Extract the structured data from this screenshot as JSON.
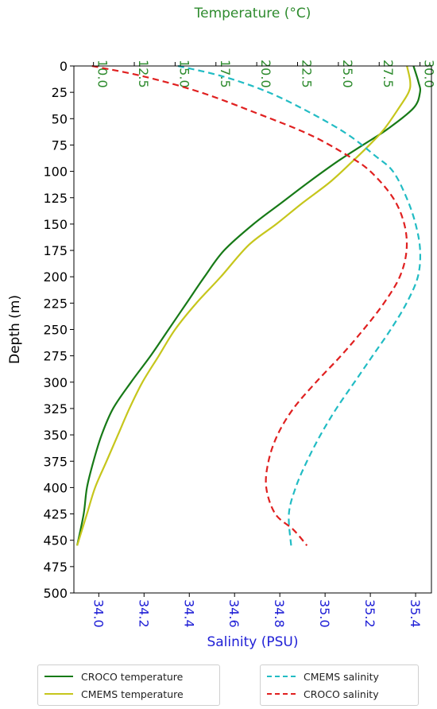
{
  "chart_data": {
    "type": "line",
    "y_axis": {
      "label": "Depth (m)",
      "range": [
        0,
        500
      ],
      "ticks": [
        0,
        25,
        50,
        75,
        100,
        125,
        150,
        175,
        200,
        225,
        250,
        275,
        300,
        325,
        350,
        375,
        400,
        425,
        450,
        475,
        500
      ],
      "inverted": true
    },
    "temp_axis": {
      "label": "Temperature (°C)",
      "position": "top",
      "color": "#2e8b2e",
      "range": [
        8.8,
        30.7
      ],
      "ticks": [
        "10.0",
        "12.5",
        "15.0",
        "17.5",
        "20.0",
        "22.5",
        "25.0",
        "27.5",
        "30.0"
      ]
    },
    "sal_axis": {
      "label": "Salinity (PSU)",
      "position": "bottom",
      "color": "#1f1fd6",
      "range": [
        33.89,
        35.47
      ],
      "ticks": [
        "34.0",
        "34.2",
        "34.4",
        "34.6",
        "34.8",
        "35.0",
        "35.2",
        "35.4"
      ]
    },
    "series": [
      {
        "name": "CROCO temperature",
        "axis": "temperature",
        "color": "#177a17",
        "dash": "solid",
        "points": [
          [
            29.6,
            0
          ],
          [
            29.9,
            15
          ],
          [
            30.0,
            25
          ],
          [
            29.6,
            40
          ],
          [
            28.0,
            60
          ],
          [
            26.5,
            75
          ],
          [
            25.0,
            90
          ],
          [
            23.2,
            110
          ],
          [
            21.5,
            130
          ],
          [
            19.8,
            150
          ],
          [
            18.0,
            175
          ],
          [
            16.8,
            200
          ],
          [
            15.7,
            225
          ],
          [
            14.6,
            250
          ],
          [
            13.5,
            275
          ],
          [
            12.3,
            300
          ],
          [
            11.2,
            325
          ],
          [
            10.5,
            350
          ],
          [
            10.0,
            375
          ],
          [
            9.6,
            400
          ],
          [
            9.4,
            425
          ],
          [
            9.0,
            455
          ]
        ]
      },
      {
        "name": "CMEMS temperature",
        "axis": "temperature",
        "color": "#c6c61c",
        "dash": "solid",
        "points": [
          [
            29.2,
            0
          ],
          [
            29.4,
            15
          ],
          [
            29.3,
            25
          ],
          [
            28.7,
            40
          ],
          [
            27.8,
            60
          ],
          [
            26.9,
            75
          ],
          [
            25.9,
            90
          ],
          [
            24.5,
            110
          ],
          [
            22.8,
            130
          ],
          [
            21.2,
            150
          ],
          [
            19.5,
            170
          ],
          [
            17.8,
            200
          ],
          [
            16.3,
            225
          ],
          [
            15.0,
            250
          ],
          [
            14.0,
            275
          ],
          [
            13.0,
            300
          ],
          [
            12.2,
            325
          ],
          [
            11.5,
            350
          ],
          [
            10.8,
            375
          ],
          [
            10.1,
            400
          ],
          [
            9.6,
            425
          ],
          [
            9.0,
            455
          ]
        ]
      },
      {
        "name": "CMEMS salinity",
        "axis": "salinity",
        "color": "#22bcc4",
        "dash": "dashed",
        "points": [
          [
            34.35,
            0
          ],
          [
            34.55,
            10
          ],
          [
            34.75,
            25
          ],
          [
            34.94,
            45
          ],
          [
            35.1,
            65
          ],
          [
            35.22,
            85
          ],
          [
            35.3,
            100
          ],
          [
            35.36,
            125
          ],
          [
            35.4,
            150
          ],
          [
            35.42,
            175
          ],
          [
            35.41,
            200
          ],
          [
            35.36,
            225
          ],
          [
            35.29,
            250
          ],
          [
            35.21,
            275
          ],
          [
            35.13,
            300
          ],
          [
            35.05,
            325
          ],
          [
            34.98,
            350
          ],
          [
            34.92,
            375
          ],
          [
            34.87,
            400
          ],
          [
            34.84,
            425
          ],
          [
            34.85,
            455
          ]
        ]
      },
      {
        "name": "CROCO salinity",
        "axis": "salinity",
        "color": "#e02020",
        "dash": "dashed",
        "points": [
          [
            33.97,
            0
          ],
          [
            34.2,
            10
          ],
          [
            34.45,
            25
          ],
          [
            34.7,
            45
          ],
          [
            34.93,
            65
          ],
          [
            35.1,
            85
          ],
          [
            35.2,
            100
          ],
          [
            35.3,
            125
          ],
          [
            35.35,
            150
          ],
          [
            35.36,
            175
          ],
          [
            35.33,
            200
          ],
          [
            35.26,
            225
          ],
          [
            35.17,
            250
          ],
          [
            35.07,
            275
          ],
          [
            34.96,
            300
          ],
          [
            34.86,
            325
          ],
          [
            34.79,
            350
          ],
          [
            34.75,
            375
          ],
          [
            34.74,
            400
          ],
          [
            34.78,
            425
          ],
          [
            34.86,
            440
          ],
          [
            34.92,
            455
          ]
        ]
      }
    ],
    "legend": {
      "placement": "bottom",
      "left_entries": [
        "CROCO temperature",
        "CMEMS temperature"
      ],
      "right_entries": [
        "CMEMS salinity",
        "CROCO salinity"
      ]
    },
    "grid": false
  }
}
